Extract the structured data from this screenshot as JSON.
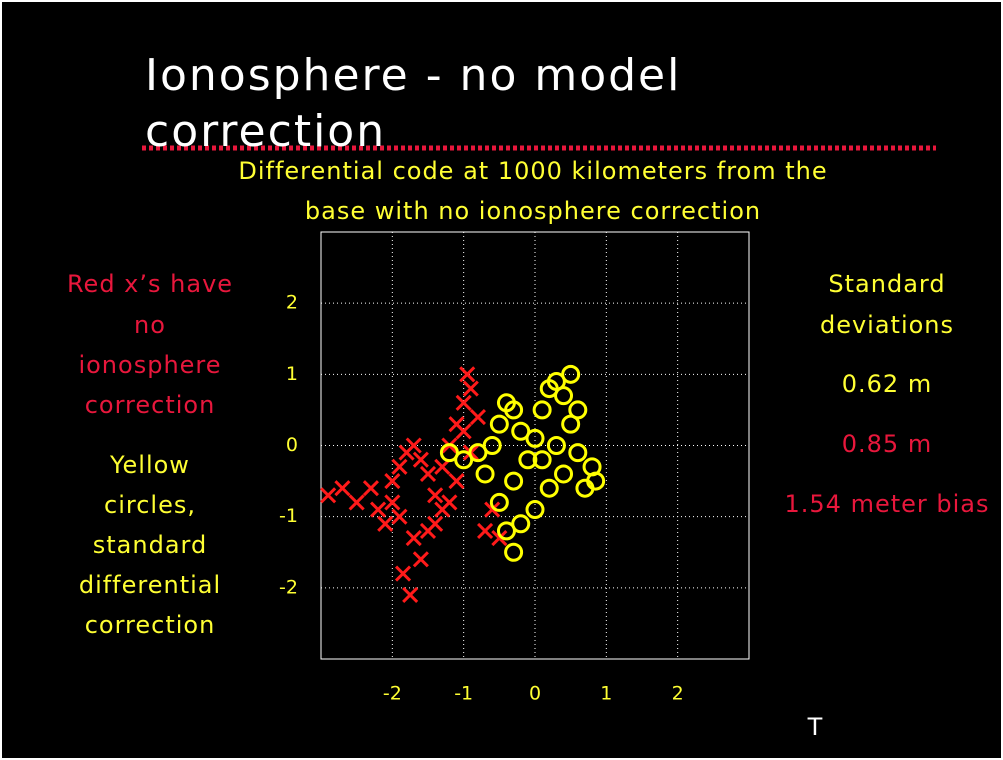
{
  "title_lines": [
    "Ionosphere - no model",
    "correction"
  ],
  "subtitle_lines": [
    "Differential code at 1000 kilometers from the",
    "base with no ionosphere correction"
  ],
  "left_notes": [
    {
      "text": "Red x’s have",
      "color": "#e8173c"
    },
    {
      "text": "no",
      "color": "#e8173c"
    },
    {
      "text": "ionosphere",
      "color": "#e8173c"
    },
    {
      "text": "correction",
      "color": "#e8173c"
    },
    {
      "text": "Yellow",
      "color": "#ffff33"
    },
    {
      "text": "circles,",
      "color": "#ffff33"
    },
    {
      "text": "standard",
      "color": "#ffff33"
    },
    {
      "text": "differential",
      "color": "#ffff33"
    },
    {
      "text": "correction",
      "color": "#ffff33"
    }
  ],
  "right_notes": [
    {
      "text": "Standard",
      "color": "#ffff33"
    },
    {
      "text": "deviations",
      "color": "#ffff33"
    },
    {
      "text": "0.62 m",
      "color": "#ffff33"
    },
    {
      "text": "0.85 m",
      "color": "#e8173c"
    },
    {
      "text": "1.54 meter bias",
      "color": "#e8173c"
    }
  ],
  "footer": "T",
  "chart_data": {
    "type": "scatter",
    "grid": true,
    "xlim": [
      -3,
      3
    ],
    "ylim": [
      -3,
      3
    ],
    "xticks": [
      -2,
      -1,
      0,
      1,
      2
    ],
    "yticks": [
      -2,
      -1,
      0,
      1,
      2
    ],
    "series": [
      {
        "color": "#ff1a1a",
        "marker": "x",
        "x": [
          -2.9,
          -2.7,
          -2.5,
          -2.3,
          -2.2,
          -2.0,
          -1.9,
          -1.8,
          -1.7,
          -1.6,
          -1.5,
          -1.4,
          -1.3,
          -1.2,
          -1.1,
          -1.0,
          -0.95,
          -0.9,
          -1.0,
          -0.9,
          -1.1,
          -1.3,
          -1.5,
          -1.6,
          -1.75,
          -1.85,
          -1.7,
          -1.9,
          -2.1,
          -1.4,
          -0.6,
          -0.5,
          -0.7,
          -0.8,
          -2.0,
          -1.2
        ],
        "y": [
          -0.7,
          -0.6,
          -0.8,
          -0.6,
          -0.9,
          -0.5,
          -0.3,
          -0.1,
          0.0,
          -0.2,
          -0.4,
          -0.7,
          -0.3,
          0.0,
          0.3,
          0.6,
          1.0,
          0.8,
          0.2,
          -0.1,
          -0.5,
          -0.9,
          -1.2,
          -1.6,
          -2.1,
          -1.8,
          -1.3,
          -1.0,
          -1.1,
          -1.1,
          -0.9,
          -1.3,
          -1.2,
          0.4,
          -0.8,
          -0.8
        ]
      },
      {
        "color": "#ffff00",
        "marker": "circle",
        "x": [
          -1.2,
          -1.0,
          -0.8,
          -0.6,
          -0.5,
          -0.4,
          -0.3,
          -0.2,
          -0.1,
          0.0,
          0.1,
          0.2,
          0.3,
          0.4,
          0.5,
          0.5,
          0.6,
          0.8,
          0.85,
          0.4,
          0.2,
          0.0,
          -0.2,
          -0.3,
          -0.4,
          -0.5,
          -0.3,
          0.1,
          0.3,
          -0.7,
          0.6,
          0.7
        ],
        "y": [
          -0.1,
          -0.2,
          -0.1,
          0.0,
          0.3,
          0.6,
          0.5,
          0.2,
          -0.2,
          0.1,
          0.5,
          0.8,
          0.9,
          0.7,
          1.0,
          0.3,
          -0.1,
          -0.3,
          -0.5,
          -0.4,
          -0.6,
          -0.9,
          -1.1,
          -1.5,
          -1.2,
          -0.8,
          -0.5,
          -0.2,
          0.0,
          -0.4,
          0.5,
          -0.6
        ]
      }
    ]
  }
}
